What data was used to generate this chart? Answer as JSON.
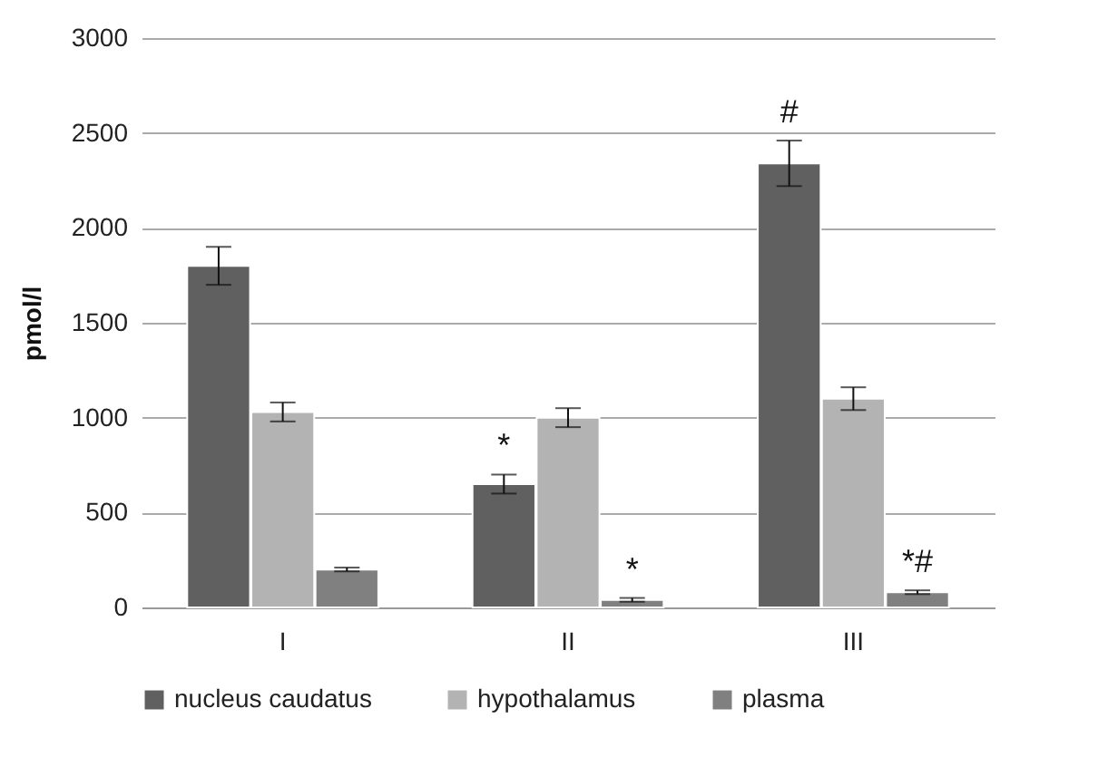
{
  "chart_data": {
    "type": "bar",
    "ylabel": "pmol/l",
    "categories": [
      "I",
      "II",
      "III"
    ],
    "series": [
      {
        "name": "nucleus caudatus",
        "color": "#606060",
        "values": [
          1800,
          650,
          2340
        ],
        "errors": [
          100,
          50,
          120
        ],
        "value_labels": [
          null,
          "*",
          "#"
        ]
      },
      {
        "name": "hypothalamus",
        "color": "#b3b3b3",
        "values": [
          1030,
          1000,
          1100
        ],
        "errors": [
          50,
          50,
          60
        ]
      },
      {
        "name": "plasma",
        "color": "#808080",
        "values": [
          200,
          40,
          80
        ],
        "errors": [
          10,
          10,
          10
        ],
        "value_labels": [
          null,
          "*",
          "*#"
        ]
      }
    ],
    "ylim": [
      0,
      3000
    ],
    "yticks": [
      0,
      500,
      1000,
      1500,
      2000,
      2500,
      3000
    ],
    "grid": "y",
    "legend": "bottom"
  }
}
